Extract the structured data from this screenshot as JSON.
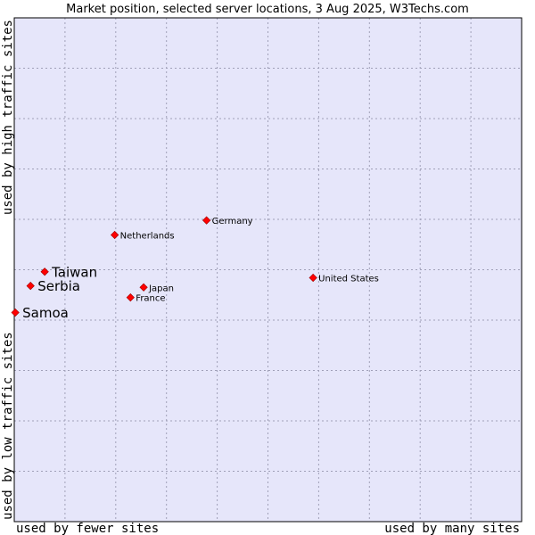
{
  "chart_data": {
    "type": "scatter",
    "title": "Market position, selected server locations, 3 Aug 2025, W3Techs.com",
    "xlabel_left": "used by fewer sites",
    "xlabel_right": "used by many sites",
    "ylabel_bottom": "used by low traffic sites",
    "ylabel_top": "used by high traffic sites",
    "xlim": [
      0,
      100
    ],
    "ylim": [
      0,
      100
    ],
    "grid": true,
    "colors": {
      "plot_bg": "#e6e6fa",
      "grid": "#a0a0b8",
      "marker": "#ff0000",
      "marker_edge": "#990000",
      "frame": "#000000"
    },
    "points": [
      {
        "name": "Samoa",
        "x": 0.2,
        "y": 41.5,
        "highlight": true
      },
      {
        "name": "Serbia",
        "x": 3.2,
        "y": 46.8,
        "highlight": true
      },
      {
        "name": "Taiwan",
        "x": 6.0,
        "y": 49.6,
        "highlight": true
      },
      {
        "name": "Netherlands",
        "x": 19.8,
        "y": 56.9,
        "highlight": false
      },
      {
        "name": "Germany",
        "x": 37.9,
        "y": 59.8,
        "highlight": false
      },
      {
        "name": "Japan",
        "x": 25.5,
        "y": 46.5,
        "highlight": false
      },
      {
        "name": "France",
        "x": 22.9,
        "y": 44.5,
        "highlight": false
      },
      {
        "name": "United States",
        "x": 58.9,
        "y": 48.4,
        "highlight": false
      }
    ]
  }
}
